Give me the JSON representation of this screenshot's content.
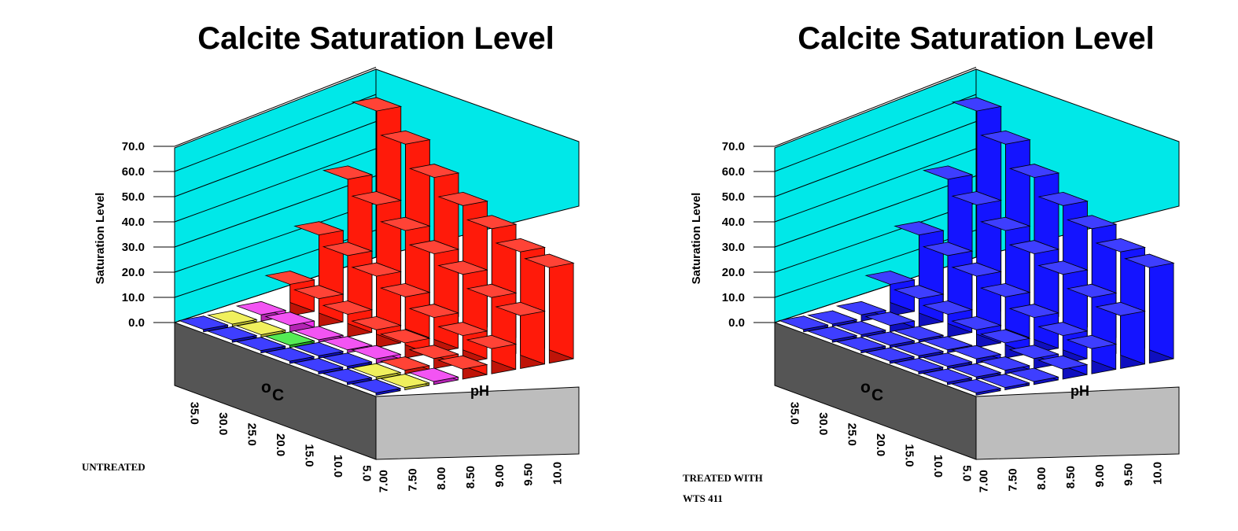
{
  "chart_data": [
    {
      "type": "bar3d",
      "title": "Calcite Saturation Level",
      "ylabel": "Saturation Level",
      "xlabel": "oC",
      "zlabel": "pH",
      "ylim": [
        0,
        70
      ],
      "y_ticks": [
        "0.0",
        "10.0",
        "20.0",
        "30.0",
        "40.0",
        "50.0",
        "60.0",
        "70.0"
      ],
      "temperature_labels": [
        "35.0",
        "30.0",
        "25.0",
        "20.0",
        "15.0",
        "10.0",
        "5.0"
      ],
      "ph_labels": [
        "7.00",
        "7.50",
        "8.00",
        "8.50",
        "9.00",
        "9.50",
        "10.0"
      ],
      "caption": [
        "UNTREATED"
      ],
      "values": [
        [
          0.3,
          0.5,
          2.5,
          12.5,
          30,
          50,
          75
        ],
        [
          0.1,
          0.4,
          2.5,
          11,
          26,
          44,
          66
        ],
        [
          0.1,
          0.3,
          1.0,
          9,
          22,
          38,
          57
        ],
        [
          0.1,
          0.2,
          1.2,
          7,
          18,
          33,
          50
        ],
        [
          0.1,
          0.1,
          1.8,
          6,
          14,
          29,
          45
        ],
        [
          0.1,
          0.1,
          1.5,
          4,
          11,
          24,
          40
        ],
        [
          0.1,
          0.2,
          1.2,
          4,
          10,
          21,
          38
        ]
      ],
      "palette": {
        "blue": "#1414ff",
        "yellow": "#eded3a",
        "green": "#2ee82e",
        "magenta": "#f02ef0",
        "red": "#ff1a0a"
      },
      "colors": [
        [
          "blue",
          "yellow",
          "magenta",
          "red",
          "red",
          "red",
          "red"
        ],
        [
          "blue",
          "yellow",
          "magenta",
          "red",
          "red",
          "red",
          "red"
        ],
        [
          "blue",
          "green",
          "magenta",
          "red",
          "red",
          "red",
          "red"
        ],
        [
          "blue",
          "blue",
          "magenta",
          "red",
          "red",
          "red",
          "red"
        ],
        [
          "blue",
          "blue",
          "magenta",
          "red",
          "red",
          "red",
          "red"
        ],
        [
          "blue",
          "yellow",
          "red",
          "red",
          "red",
          "red",
          "red"
        ],
        [
          "blue",
          "yellow",
          "magenta",
          "red",
          "red",
          "red",
          "red"
        ]
      ]
    },
    {
      "type": "bar3d",
      "title": "Calcite Saturation Level",
      "ylabel": "Saturation Level",
      "xlabel": "oC",
      "zlabel": "pH",
      "ylim": [
        0,
        70
      ],
      "y_ticks": [
        "0.0",
        "10.0",
        "20.0",
        "30.0",
        "40.0",
        "50.0",
        "60.0",
        "70.0"
      ],
      "temperature_labels": [
        "35.0",
        "30.0",
        "25.0",
        "20.0",
        "15.0",
        "10.0",
        "5.0"
      ],
      "ph_labels": [
        "7.00",
        "7.50",
        "8.00",
        "8.50",
        "9.00",
        "9.50",
        "10.0"
      ],
      "caption": [
        "TREATED WITH",
        "WTS 411"
      ],
      "values": [
        [
          0.3,
          0.5,
          2.5,
          12.5,
          30,
          50,
          75
        ],
        [
          0.1,
          0.4,
          2.5,
          11,
          26,
          44,
          66
        ],
        [
          0.1,
          0.3,
          1.0,
          9,
          22,
          38,
          57
        ],
        [
          0.1,
          0.2,
          1.2,
          7,
          18,
          33,
          50
        ],
        [
          0.1,
          0.1,
          1.8,
          6,
          14,
          29,
          45
        ],
        [
          0.1,
          0.1,
          1.5,
          4,
          11,
          24,
          40
        ],
        [
          0.1,
          0.2,
          1.2,
          4,
          10,
          21,
          38
        ]
      ],
      "palette": {
        "blue": "#1414ff"
      },
      "colors": "blue"
    }
  ],
  "background_colors": {
    "back_wall": "#00e8e8",
    "left_skirt": "#555555",
    "right_skirt": "#bdbdbd"
  }
}
